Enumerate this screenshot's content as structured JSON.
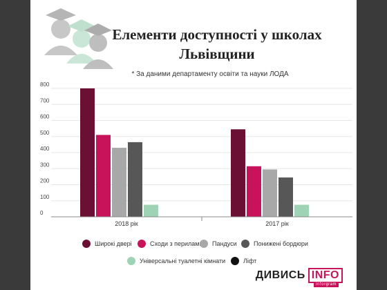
{
  "header": {
    "title_line1": "Елементи доступності у школах",
    "title_line2": "Львівщини",
    "subtitle": "* За даними департаменту освіти та науки ЛОДА"
  },
  "colors": {
    "Широкі двері": "#6b0f34",
    "Сходи з перилами": "#c8125a",
    "Пандуси": "#a8a8a8",
    "Понижені бордюри": "#575757",
    "Універсальні туалетні кімнати": "#9fd3b5",
    "Ліфт": "#111111"
  },
  "chart_data": {
    "type": "bar",
    "title": "Елементи доступності у школах Львівщини",
    "categories": [
      "2018 рік",
      "2017 рік"
    ],
    "ylim": [
      0,
      800
    ],
    "yticks": [
      0,
      100,
      200,
      300,
      400,
      500,
      600,
      700,
      800
    ],
    "grid": true,
    "legend_position": "bottom",
    "series": [
      {
        "name": "Широкі двері",
        "values": [
          800,
          545
        ]
      },
      {
        "name": "Сходи з перилами",
        "values": [
          510,
          315
        ]
      },
      {
        "name": "Пандуси",
        "values": [
          430,
          295
        ]
      },
      {
        "name": "Понижені бордюри",
        "values": [
          465,
          245
        ]
      },
      {
        "name": "Універсальні туалетні кімнати",
        "values": [
          75,
          75
        ]
      },
      {
        "name": "Ліфт",
        "values": [
          2,
          2
        ]
      }
    ]
  },
  "brand": {
    "name": "ДИВИСЬ",
    "info": "INFO",
    "sub": "inforgram"
  }
}
